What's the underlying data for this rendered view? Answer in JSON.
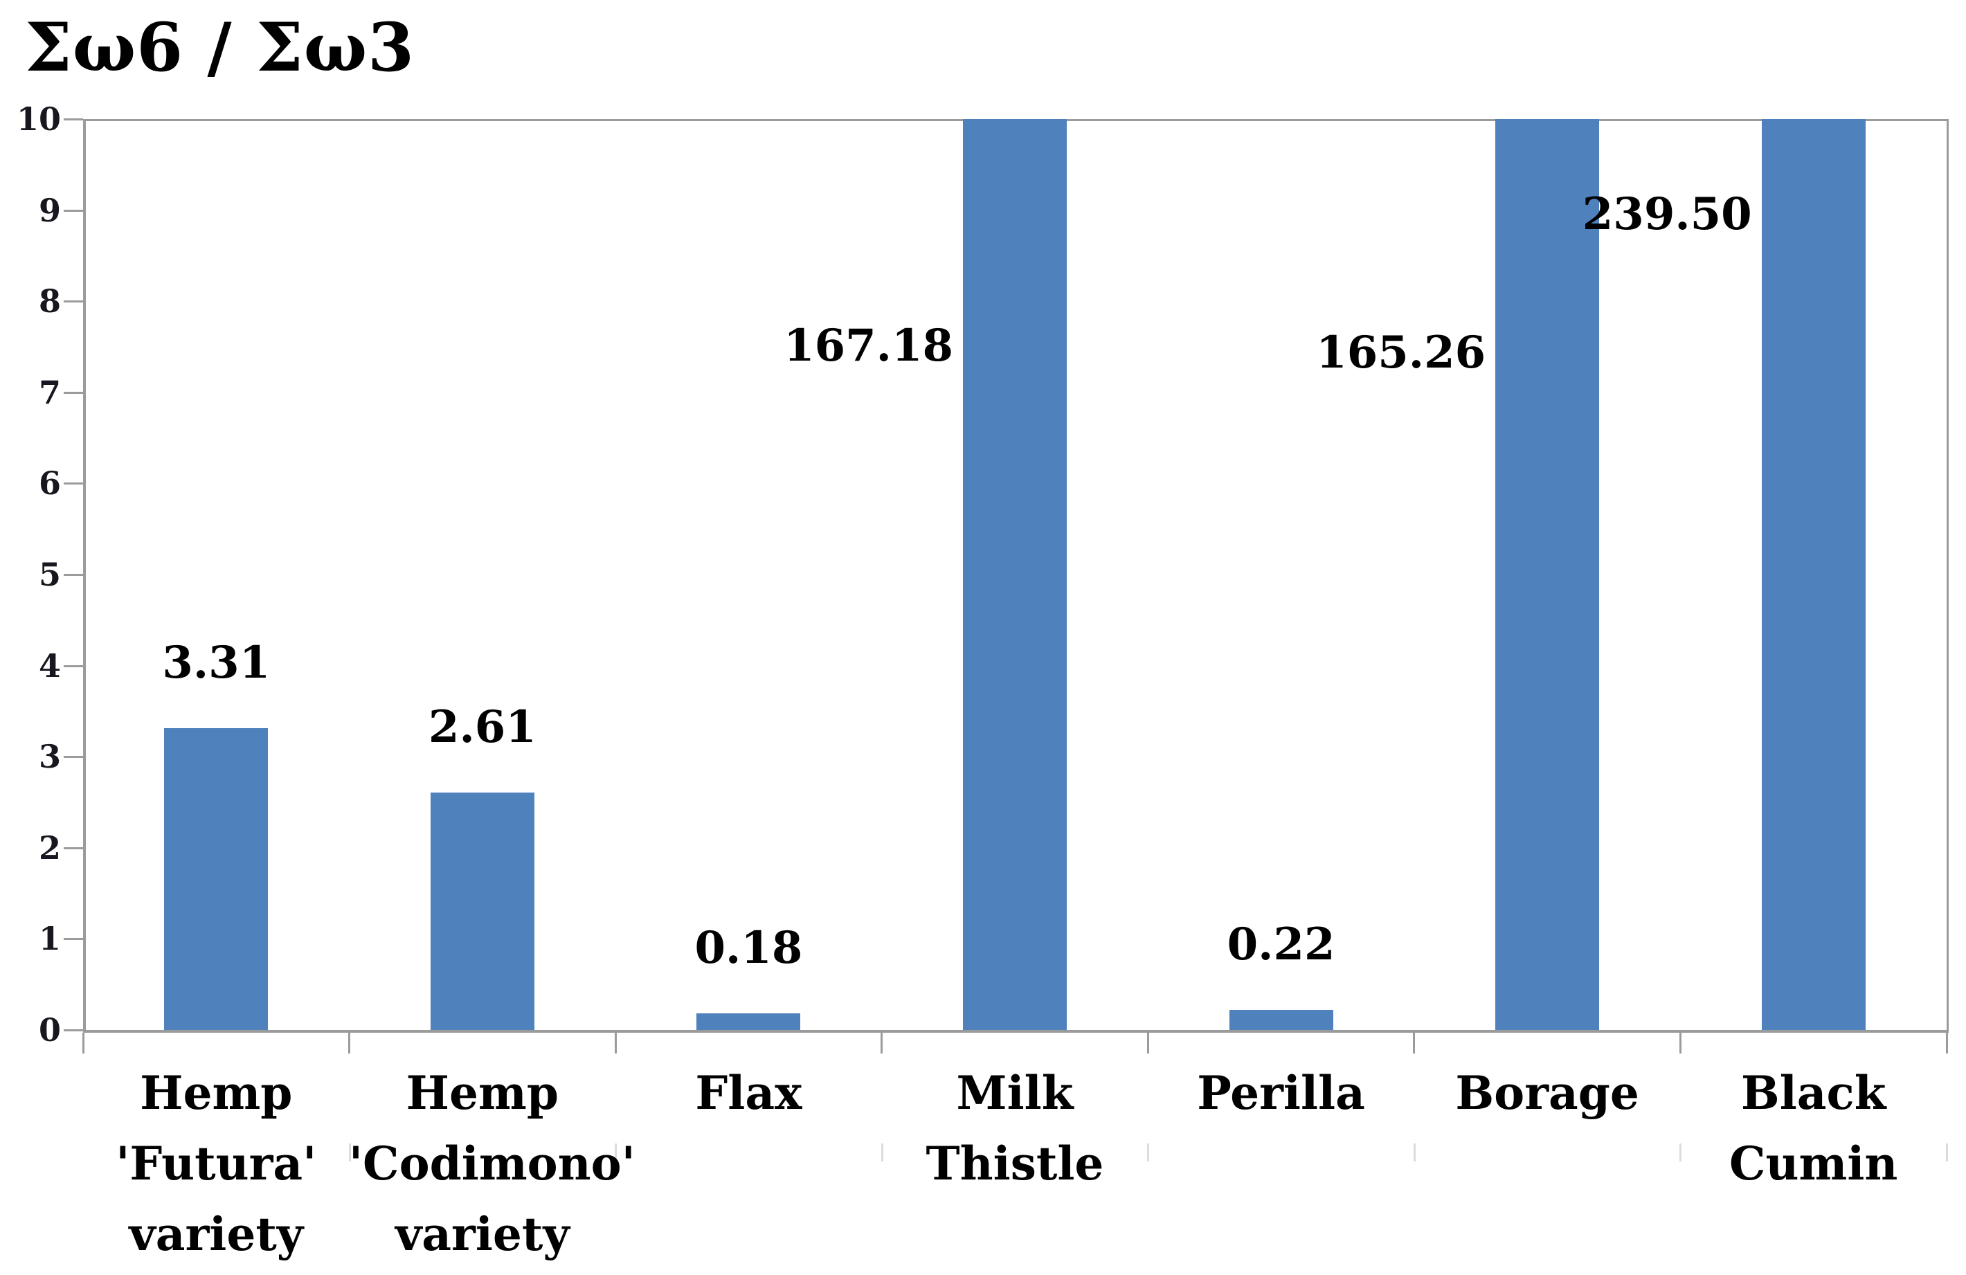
{
  "chart_data": {
    "type": "bar",
    "title": "Σω6 / Σω3",
    "categories": [
      "Hemp 'Futura' variety",
      "Hemp 'Codimono' variety",
      "Flax",
      "Milk Thistle",
      "Perilla",
      "Borage",
      "Black Cumin"
    ],
    "category_label_lines": [
      [
        "Hemp",
        "'Futura'",
        "variety"
      ],
      [
        "Hemp",
        "'Codimono'",
        "variety"
      ],
      [
        "Flax"
      ],
      [
        "Milk",
        "Thistle"
      ],
      [
        "Perilla"
      ],
      [
        "Borage"
      ],
      [
        "Black",
        "Cumin"
      ]
    ],
    "values": [
      3.31,
      2.61,
      0.18,
      167.18,
      0.22,
      165.26,
      239.5
    ],
    "data_labels": [
      {
        "text": "3.31",
        "placement": "above"
      },
      {
        "text": "2.61",
        "placement": "above"
      },
      {
        "text": "0.18",
        "placement": "above"
      },
      {
        "text": "167.18",
        "placement": "left_of_bar",
        "at_value": 7.51
      },
      {
        "text": "0.22",
        "placement": "above"
      },
      {
        "text": "165.26",
        "placement": "left_of_bar",
        "at_value": 7.43
      },
      {
        "text": "239.50",
        "placement": "left_of_bar",
        "at_value": 8.95
      }
    ],
    "xlabel": "",
    "ylabel": "",
    "ylim": [
      0,
      10
    ],
    "y_tick_step": 1,
    "y_tick_labels": [
      "0",
      "1",
      "2",
      "3",
      "4",
      "5",
      "6",
      "7",
      "8",
      "9",
      "10"
    ],
    "bars_clipped_at_axis_max": [
      "Milk Thistle",
      "Borage",
      "Black Cumin"
    ],
    "grid": "off",
    "legend": "none",
    "colors": {
      "bar_fill": "#4F81BD",
      "axis_line": "#9B9B9B",
      "y_tick_label": "#17171F",
      "data_label": "#000000",
      "category_label": "#000000",
      "title": "#000000",
      "background": "#FFFFFF"
    }
  }
}
